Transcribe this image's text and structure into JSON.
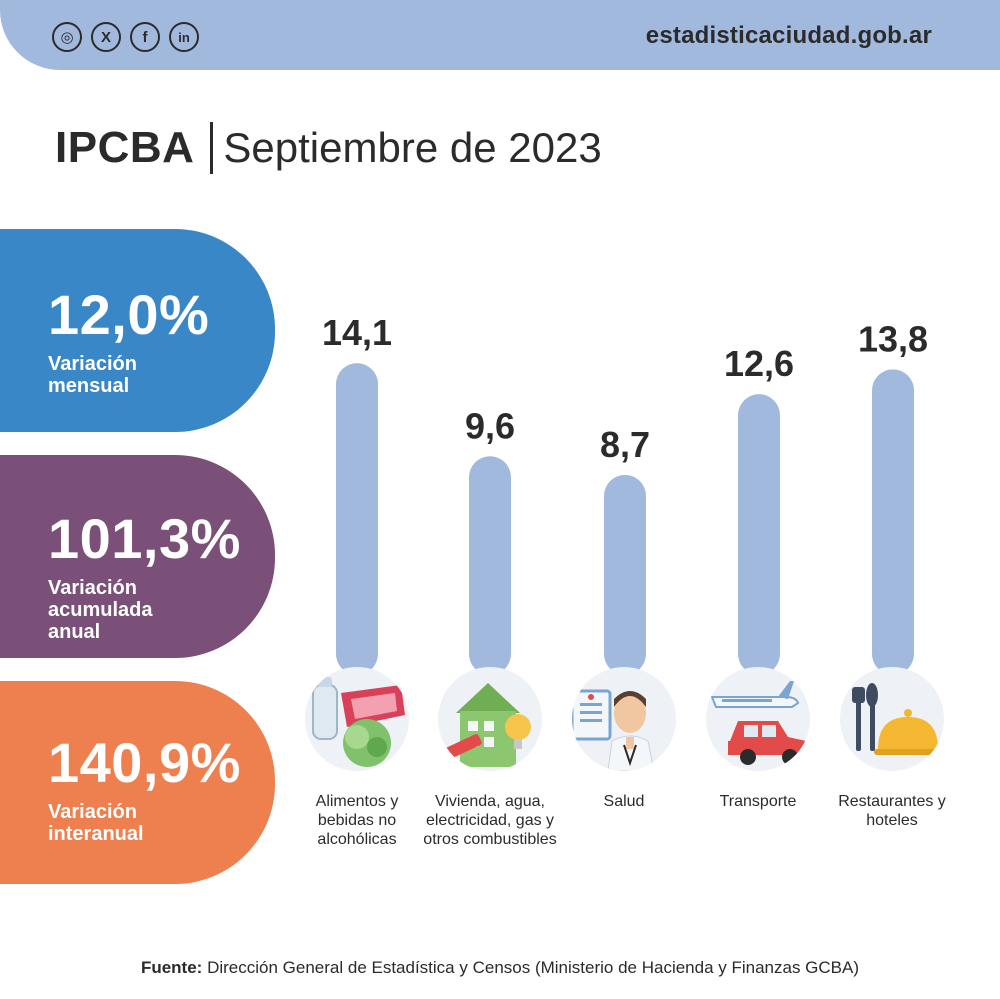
{
  "header": {
    "social_icons": [
      "instagram-icon",
      "x-icon",
      "facebook-icon",
      "linkedin-icon"
    ],
    "social_glyphs": [
      "◎",
      "X",
      "f",
      "in"
    ],
    "website": "estadisticaciudad.gob.ar"
  },
  "title": {
    "main": "IPCBA",
    "period": "Septiembre de 2023"
  },
  "stats": [
    {
      "value": "12,0%",
      "label": "Variación mensual",
      "color": "#3a87c8"
    },
    {
      "value": "101,3%",
      "label": "Variación acumulada anual",
      "color": "#7b5078"
    },
    {
      "value": "140,9%",
      "label": "Variación interanual",
      "color": "#ee7f4f"
    }
  ],
  "chart_data": {
    "type": "bar",
    "categories": [
      "Alimentos y bebidas no alcohólicas",
      "Vivienda, agua, electricidad, gas y otros combustibles",
      "Salud",
      "Transporte",
      "Restaurantes y hoteles"
    ],
    "values": [
      14.1,
      9.6,
      8.7,
      12.6,
      13.8
    ],
    "value_labels": [
      "14,1",
      "9,6",
      "8,7",
      "12,6",
      "13,8"
    ],
    "icons": [
      "food-icon",
      "house-icon",
      "doctor-icon",
      "transport-icon",
      "restaurant-icon"
    ],
    "bar_color": "#a2b9de",
    "grid": false
  },
  "footer": {
    "label": "Fuente:",
    "text": "Dirección General de Estadística y Censos (Ministerio de Hacienda y Finanzas GCBA)"
  }
}
